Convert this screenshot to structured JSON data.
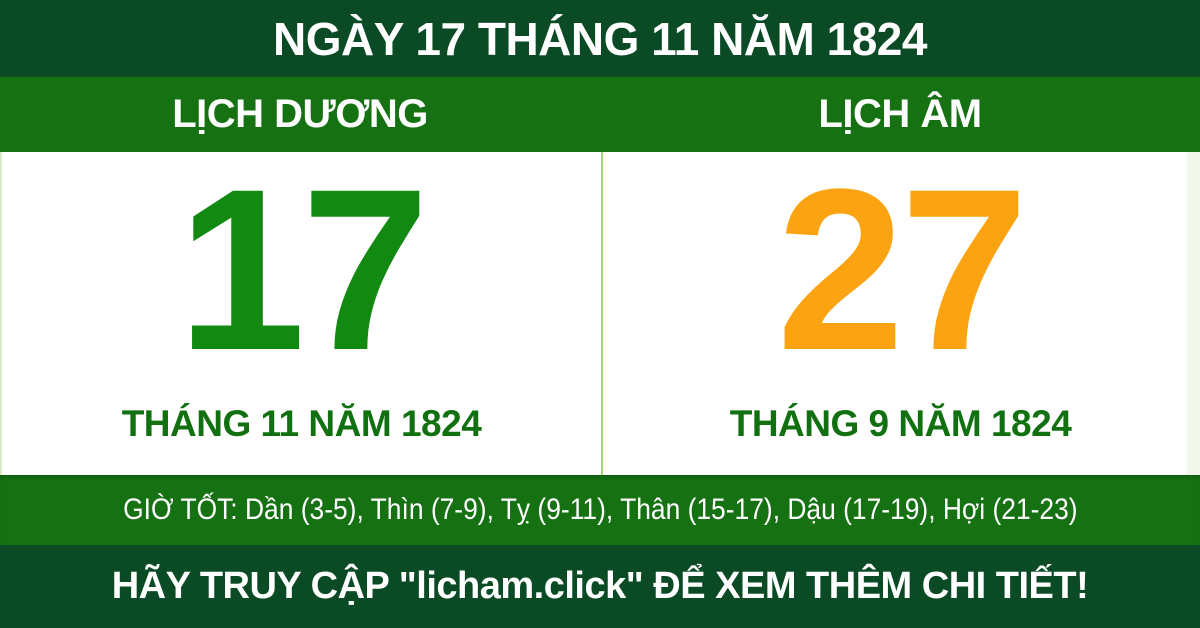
{
  "page": {
    "title": "NGÀY 17 THÁNG 11 NĂM 1824",
    "good_hours": "GIỜ TỐT: Dần (3-5), Thìn (7-9), Tỵ (9-11), Thân (15-17), Dậu (17-19), Hợi (21-23)",
    "footer": "HÃY TRUY CẬP \"licham.click\" ĐỂ XEM THÊM CHI TIẾT!"
  },
  "solar": {
    "label": "LỊCH DƯƠNG",
    "day": "17",
    "month_year": "THÁNG 11 NĂM 1824"
  },
  "lunar": {
    "label": "LỊCH ÂM",
    "day": "27",
    "month_year": "THÁNG 9 NĂM 1824"
  },
  "colors": {
    "dark_green": "#0a4a25",
    "band_green": "#157112",
    "solar_day_green": "#128a12",
    "lunar_day_orange": "#fca311",
    "month_text_green": "#117010",
    "divider_light_green": "#a8d57a",
    "edge_tint": "#f2f8e9",
    "white": "#ffffff"
  }
}
